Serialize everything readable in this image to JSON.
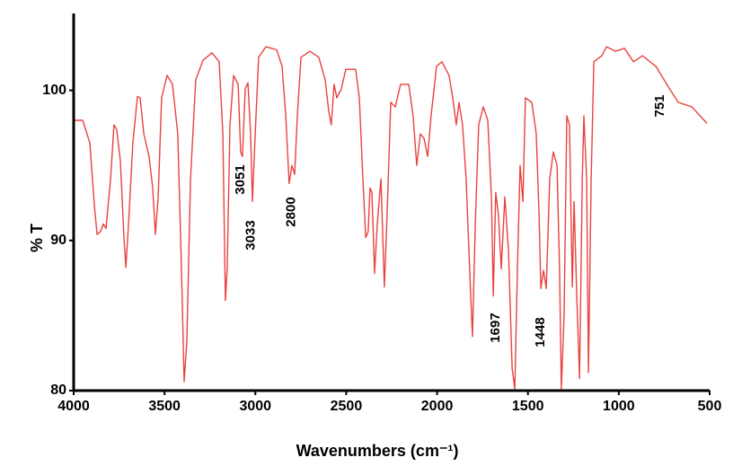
{
  "chart_data": {
    "type": "line",
    "xlabel": "Wavenumbers (cm⁻¹)",
    "ylabel": "% T",
    "xlim": [
      4000,
      500
    ],
    "ylim": [
      80,
      105
    ],
    "xticks": [
      4000,
      3500,
      3000,
      2500,
      2000,
      1500,
      1000,
      500
    ],
    "yticks": [
      80,
      90,
      100
    ],
    "series": [
      {
        "color": "#e8433f",
        "x": [
          4000,
          3950,
          3911,
          3886,
          3871,
          3852,
          3837,
          3822,
          3797,
          3778,
          3763,
          3743,
          3723,
          3713,
          3698,
          3674,
          3649,
          3634,
          3614,
          3585,
          3565,
          3550,
          3535,
          3516,
          3486,
          3456,
          3427,
          3407,
          3392,
          3377,
          3357,
          3328,
          3288,
          3239,
          3199,
          3179,
          3165,
          3155,
          3140,
          3120,
          3095,
          3081,
          3071,
          3056,
          3041,
          3026,
          3016,
          3001,
          2982,
          2942,
          2883,
          2853,
          2833,
          2814,
          2799,
          2784,
          2769,
          2749,
          2700,
          2651,
          2616,
          2596,
          2582,
          2567,
          2552,
          2527,
          2502,
          2448,
          2428,
          2408,
          2393,
          2379,
          2369,
          2359,
          2344,
          2329,
          2309,
          2290,
          2275,
          2255,
          2230,
          2201,
          2156,
          2132,
          2112,
          2092,
          2072,
          2052,
          2033,
          2003,
          1973,
          1934,
          1914,
          1894,
          1879,
          1860,
          1840,
          1815,
          1805,
          1790,
          1771,
          1746,
          1721,
          1701,
          1691,
          1677,
          1662,
          1647,
          1627,
          1607,
          1587,
          1572,
          1558,
          1543,
          1528,
          1514,
          1479,
          1454,
          1439,
          1429,
          1414,
          1399,
          1380,
          1360,
          1340,
          1326,
          1316,
          1301,
          1286,
          1271,
          1256,
          1246,
          1231,
          1216,
          1201,
          1192,
          1177,
          1167,
          1152,
          1137,
          1093,
          1068,
          1018,
          969,
          919,
          870,
          796,
          721,
          672,
          598,
          515
        ],
        "values": [
          98.0,
          98.0,
          96.5,
          92.3,
          90.4,
          90.6,
          91.1,
          90.8,
          94.1,
          97.7,
          97.4,
          95.3,
          90.2,
          88.2,
          91.1,
          96.5,
          99.6,
          99.5,
          97.1,
          95.6,
          93.5,
          90.4,
          92.9,
          99.5,
          101.0,
          100.4,
          97.1,
          88.1,
          80.6,
          83.3,
          94.1,
          100.7,
          102.0,
          102.5,
          101.9,
          97.1,
          86.0,
          88.1,
          97.7,
          101.0,
          100.4,
          95.9,
          95.6,
          100.1,
          100.5,
          97.1,
          92.6,
          97.1,
          102.2,
          102.9,
          102.7,
          101.6,
          98.3,
          93.8,
          95.0,
          94.4,
          98.3,
          102.2,
          102.6,
          102.2,
          100.7,
          98.6,
          97.7,
          100.4,
          99.5,
          100.1,
          101.4,
          101.4,
          99.5,
          94.1,
          90.2,
          90.6,
          93.5,
          93.2,
          87.8,
          91.1,
          94.1,
          86.9,
          91.7,
          99.2,
          98.9,
          100.4,
          100.4,
          98.3,
          95.0,
          97.1,
          96.8,
          95.6,
          98.3,
          101.6,
          101.9,
          101.0,
          99.5,
          97.7,
          99.2,
          97.7,
          94.1,
          86.3,
          83.6,
          91.1,
          97.7,
          98.9,
          98.0,
          92.9,
          86.3,
          93.2,
          91.7,
          88.1,
          92.9,
          89.3,
          81.5,
          80.1,
          88.1,
          95.0,
          92.6,
          99.5,
          99.2,
          97.1,
          91.7,
          86.8,
          88.0,
          86.8,
          94.1,
          95.9,
          95.0,
          88.1,
          80.1,
          85.1,
          98.3,
          97.7,
          86.9,
          92.6,
          86.3,
          80.8,
          94.1,
          98.3,
          94.1,
          81.2,
          94.1,
          101.9,
          102.3,
          102.9,
          102.6,
          102.8,
          101.9,
          102.3,
          101.6,
          100.1,
          99.2,
          98.9,
          97.8
        ]
      }
    ],
    "annotations": [
      {
        "text": "3051",
        "x": 3051
      },
      {
        "text": "3033",
        "x": 3033
      },
      {
        "text": "2800",
        "x": 2800
      },
      {
        "text": "1697",
        "x": 1697
      },
      {
        "text": "1448",
        "x": 1448
      },
      {
        "text": "751",
        "x": 751
      }
    ]
  }
}
